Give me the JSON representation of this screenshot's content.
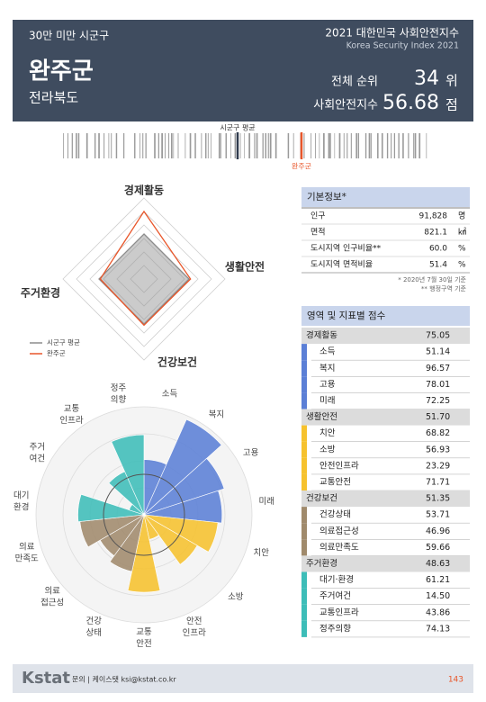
{
  "header": {
    "category": "30만 미만 시군구",
    "title": "2021 대한민국 사회안전지수",
    "subtitle": "Korea Security Index 2021",
    "region": "완주군",
    "province": "전라북도",
    "rank_label": "전체 순위",
    "rank": 34,
    "rank_unit": "위",
    "index_label": "사회안전지수",
    "index": 56.68,
    "index_unit": "점"
  },
  "barcode": {
    "avg_label": "시군구 평균",
    "region_label": "완주군"
  },
  "radar": {
    "type": "radar",
    "categories": [
      "경제활동",
      "생활안전",
      "건강보건",
      "주거환경"
    ],
    "rlim": [
      0,
      90
    ],
    "series": [
      {
        "name": "시군구 평균",
        "color": "#8c8c8c",
        "values": [
          50,
          50,
          50,
          50
        ]
      },
      {
        "name": "완주군",
        "color": "#e8562a",
        "values": [
          75.05,
          51.7,
          51.35,
          48.63
        ]
      }
    ]
  },
  "rose": {
    "type": "polar_bar",
    "rlim": [
      0,
      100
    ],
    "categories": [
      [
        "소득"
      ],
      [
        "복지"
      ],
      [
        "고용"
      ],
      [
        "미래"
      ],
      [
        "치안"
      ],
      [
        "소방"
      ],
      [
        "안전",
        "인프라"
      ],
      [
        "교통",
        "안전"
      ],
      [
        "건강",
        "상태"
      ],
      [
        "의료",
        "접근성"
      ],
      [
        "의료",
        "만족도"
      ],
      [
        "대기",
        "환경"
      ],
      [
        "주거",
        "여건"
      ],
      [
        "교통",
        "인프라"
      ],
      [
        "정주",
        "의향"
      ]
    ],
    "values": [
      51.14,
      96.57,
      78.01,
      72.25,
      68.82,
      56.93,
      23.29,
      71.71,
      53.71,
      46.96,
      59.66,
      61.21,
      14.5,
      43.86,
      74.13
    ],
    "colors": [
      "#5b7fd6",
      "#5b7fd6",
      "#5b7fd6",
      "#5b7fd6",
      "#f6c22e",
      "#f6c22e",
      "#f6c22e",
      "#f6c22e",
      "#a08a6c",
      "#a08a6c",
      "#a08a6c",
      "#3dbdb8",
      "#3dbdb8",
      "#3dbdb8",
      "#3dbdb8"
    ]
  },
  "basic_info": {
    "title": "기본정보*",
    "rows": [
      [
        "인구",
        "91,828",
        "명"
      ],
      [
        "면적",
        "821.1",
        "㎢"
      ],
      [
        "도시지역 인구비율**",
        "60.0",
        "%"
      ],
      [
        "도시지역 면적비율",
        "51.4",
        "%"
      ]
    ],
    "notes": [
      "* 2020년 7월 30일 기준",
      "** 행정구역 기준"
    ]
  },
  "scores": {
    "title": "영역 및 지표별 점수",
    "domains": [
      {
        "name": "경제활동",
        "score": 75.05,
        "color": "#5b7fd6",
        "indicators": [
          {
            "name": "소득",
            "score": 51.14
          },
          {
            "name": "복지",
            "score": 96.57
          },
          {
            "name": "고용",
            "score": 78.01
          },
          {
            "name": "미래",
            "score": 72.25
          }
        ]
      },
      {
        "name": "생활안전",
        "score": 51.7,
        "score_label": "51.70",
        "color": "#f6c22e",
        "indicators": [
          {
            "name": "치안",
            "score": 68.82
          },
          {
            "name": "소방",
            "score": 56.93
          },
          {
            "name": "안전인프라",
            "score": 23.29
          },
          {
            "name": "교통안전",
            "score": 71.71
          }
        ]
      },
      {
        "name": "건강보건",
        "score": 51.35,
        "color": "#a08a6c",
        "indicators": [
          {
            "name": "건강상태",
            "score": 53.71
          },
          {
            "name": "의료접근성",
            "score": 46.96
          },
          {
            "name": "의료만족도",
            "score": 59.66
          }
        ]
      },
      {
        "name": "주거환경",
        "score": 48.63,
        "color": "#3dbdb8",
        "indicators": [
          {
            "name": "대기·환경",
            "score": 61.21
          },
          {
            "name": "주거여건",
            "score": 14.5,
            "score_label": "14.50"
          },
          {
            "name": "교통인프라",
            "score": 43.86
          },
          {
            "name": "정주의향",
            "score": 74.13
          }
        ]
      }
    ]
  },
  "footer": {
    "logo": "Kstat",
    "contact": "문의 | 케이스탯 ksi@kstat.co.kr",
    "page": "143"
  }
}
